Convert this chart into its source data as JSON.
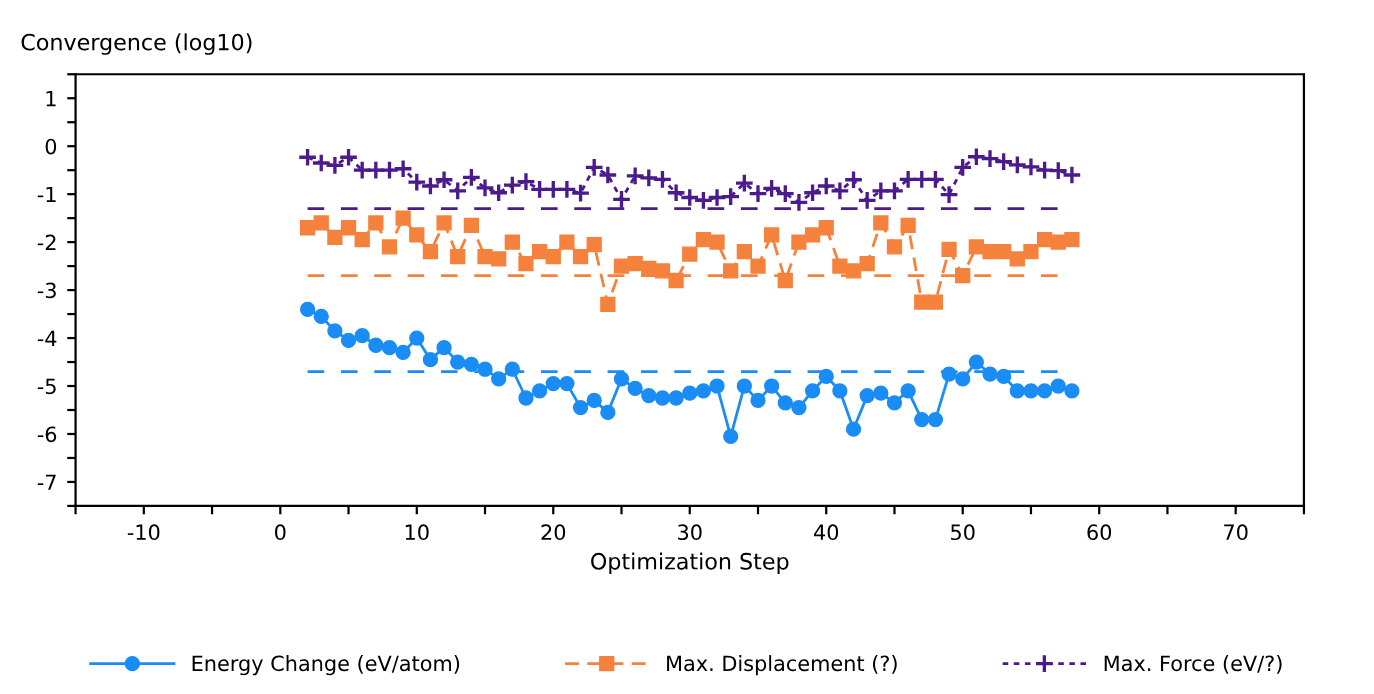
{
  "chart_data": {
    "type": "line",
    "ylabel": "Convergence (log10)",
    "xlabel": "Optimization Step",
    "x": [
      2,
      3,
      4,
      5,
      6,
      7,
      8,
      9,
      10,
      11,
      12,
      13,
      14,
      15,
      16,
      17,
      18,
      19,
      20,
      21,
      22,
      23,
      24,
      25,
      26,
      27,
      28,
      29,
      30,
      31,
      32,
      33,
      34,
      35,
      36,
      37,
      38,
      39,
      40,
      41,
      42,
      43,
      44,
      45,
      46,
      47,
      48,
      49,
      50,
      51,
      52,
      53,
      54,
      55,
      56,
      57,
      58
    ],
    "series": [
      {
        "name": "Energy Change (eV/atom)",
        "color": "#1a8cf5",
        "marker": "circle",
        "line_style": "solid",
        "values": [
          -3.4,
          -3.55,
          -3.85,
          -4.05,
          -3.95,
          -4.15,
          -4.2,
          -4.3,
          -4.0,
          -4.45,
          -4.2,
          -4.5,
          -4.55,
          -4.65,
          -4.85,
          -4.65,
          -5.25,
          -5.1,
          -4.95,
          -4.95,
          -5.45,
          -5.3,
          -5.55,
          -4.85,
          -5.05,
          -5.2,
          -5.25,
          -5.25,
          -5.15,
          -5.1,
          -5.0,
          -6.05,
          -5.0,
          -5.3,
          -5.0,
          -5.35,
          -5.45,
          -5.1,
          -4.8,
          -5.1,
          -5.9,
          -5.2,
          -5.15,
          -5.35,
          -5.1,
          -5.7,
          -5.7,
          -4.75,
          -4.85,
          -4.5,
          -4.75,
          -4.8,
          -5.1,
          -5.1,
          -5.1,
          -5.0,
          -5.1
        ]
      },
      {
        "name": "Max. Displacement (?)",
        "color": "#f5823c",
        "marker": "square",
        "line_style": "dashed",
        "values": [
          -1.7,
          -1.6,
          -1.9,
          -1.7,
          -1.95,
          -1.6,
          -2.1,
          -1.5,
          -1.85,
          -2.2,
          -1.6,
          -2.3,
          -1.65,
          -2.3,
          -2.35,
          -2.0,
          -2.45,
          -2.2,
          -2.3,
          -2.0,
          -2.3,
          -2.05,
          -3.3,
          -2.5,
          -2.45,
          -2.55,
          -2.6,
          -2.8,
          -2.25,
          -1.95,
          -2.0,
          -2.6,
          -2.2,
          -2.5,
          -1.85,
          -2.8,
          -2.0,
          -1.85,
          -1.7,
          -2.5,
          -2.6,
          -2.45,
          -1.6,
          -2.1,
          -1.65,
          -3.25,
          -3.25,
          -2.15,
          -2.7,
          -2.1,
          -2.2,
          -2.2,
          -2.35,
          -2.2,
          -1.95,
          -2.0,
          -1.95
        ]
      },
      {
        "name": "Max. Force (eV/?)",
        "color": "#4b1a8c",
        "marker": "cross",
        "line_style": "dotted",
        "values": [
          -0.23,
          -0.35,
          -0.4,
          -0.23,
          -0.5,
          -0.5,
          -0.5,
          -0.47,
          -0.75,
          -0.83,
          -0.7,
          -0.93,
          -0.65,
          -0.87,
          -0.97,
          -0.81,
          -0.74,
          -0.9,
          -0.9,
          -0.9,
          -0.98,
          -0.44,
          -0.6,
          -1.11,
          -0.62,
          -0.66,
          -0.69,
          -0.97,
          -1.07,
          -1.13,
          -1.07,
          -1.05,
          -0.77,
          -0.99,
          -0.88,
          -0.99,
          -1.17,
          -0.97,
          -0.83,
          -0.93,
          -0.7,
          -1.13,
          -0.93,
          -0.93,
          -0.69,
          -0.69,
          -0.69,
          -1.01,
          -0.44,
          -0.22,
          -0.26,
          -0.32,
          -0.39,
          -0.43,
          -0.5,
          -0.51,
          -0.6
        ]
      }
    ],
    "ref_lines": [
      {
        "axis": "y",
        "value": -4.7,
        "color": "#1a8cf5",
        "line_style": "dashed"
      },
      {
        "axis": "y",
        "value": -2.7,
        "color": "#f5823c",
        "line_style": "dashed"
      },
      {
        "axis": "y",
        "value": -1.3,
        "color": "#4b1a8c",
        "line_style": "dashed"
      }
    ],
    "xlim": [
      -15,
      75
    ],
    "xticks": [
      {
        "value": -15,
        "label": null
      },
      -10,
      {
        "value": -5,
        "label": null
      },
      0,
      {
        "value": 5,
        "label": null
      },
      10,
      {
        "value": 15,
        "label": null
      },
      20,
      {
        "value": 25,
        "label": null
      },
      30,
      {
        "value": 35,
        "label": null
      },
      40,
      {
        "value": 45,
        "label": null
      },
      50,
      {
        "value": 55,
        "label": null
      },
      60,
      {
        "value": 65,
        "label": null
      },
      70,
      {
        "value": 75,
        "label": null
      }
    ],
    "ylim": [
      -7.5,
      1.5
    ],
    "yticks": [
      {
        "value": -7.5,
        "label": null
      },
      -7,
      {
        "value": -6.5,
        "label": null
      },
      -6,
      {
        "value": -5.5,
        "label": null
      },
      -5,
      {
        "value": -4.5,
        "label": null
      },
      -4,
      {
        "value": -3.5,
        "label": null
      },
      -3,
      {
        "value": -2.5,
        "label": null
      },
      -2,
      {
        "value": -1.5,
        "label": null
      },
      -1,
      {
        "value": -0.5,
        "label": null
      },
      0,
      {
        "value": 0.5,
        "label": null
      },
      1,
      {
        "value": 1.5,
        "label": null
      }
    ],
    "grid": false,
    "legend": "bottom"
  }
}
